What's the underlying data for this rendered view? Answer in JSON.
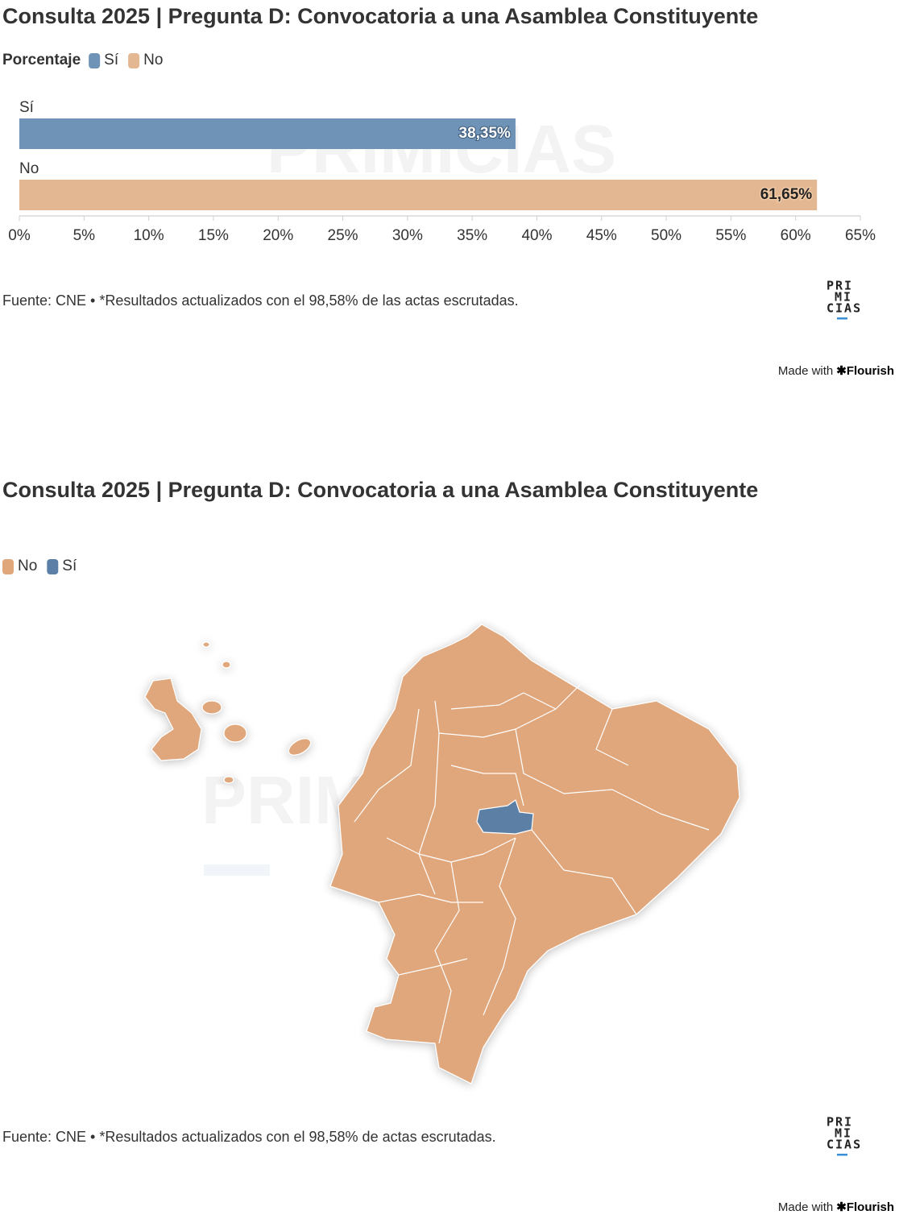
{
  "chart_data": [
    {
      "type": "bar",
      "title": "Consulta 2025 | Pregunta D: Convocatoria a una Asamblea Constituyente",
      "legend": {
        "title": "Porcentaje",
        "items": [
          {
            "name": "Sí",
            "color": "#6f93b6"
          },
          {
            "name": "No",
            "color": "#e4b793"
          }
        ]
      },
      "categories": [
        "Sí",
        "No"
      ],
      "values": [
        38.35,
        61.65
      ],
      "value_labels": [
        "38,35%",
        "61,65%"
      ],
      "xlim": [
        0,
        65
      ],
      "xticks": [
        {
          "value": 0,
          "label": "0%"
        },
        {
          "value": 5,
          "label": "5%"
        },
        {
          "value": 10,
          "label": "10%"
        },
        {
          "value": 15,
          "label": "15%"
        },
        {
          "value": 20,
          "label": "20%"
        },
        {
          "value": 25,
          "label": "25%"
        },
        {
          "value": 30,
          "label": "30%"
        },
        {
          "value": 35,
          "label": "35%"
        },
        {
          "value": 40,
          "label": "40%"
        },
        {
          "value": 45,
          "label": "45%"
        },
        {
          "value": 50,
          "label": "50%"
        },
        {
          "value": 55,
          "label": "55%"
        },
        {
          "value": 60,
          "label": "60%"
        },
        {
          "value": 65,
          "label": "65%"
        }
      ],
      "watermark": "PRIMICIAS",
      "source": "Fuente: CNE • *Resultados actualizados con el 98,58% de las actas escrutadas.",
      "logo": [
        "PRI",
        "MI",
        "CIAS"
      ],
      "credit": "Made with",
      "brand": "✱Flourish"
    },
    {
      "type": "map",
      "title": "Consulta 2025 | Pregunta D: Convocatoria a una Asamblea Constituyente",
      "legend": {
        "items": [
          {
            "name": "No",
            "color": "#e0a77b"
          },
          {
            "name": "Sí",
            "color": "#5b7fa6"
          }
        ]
      },
      "watermark": "PRIMICIAS",
      "source": "Fuente: CNE • *Resultados actualizados con el 98,58% de actas escrutadas.",
      "logo": [
        "PRI",
        "MI",
        "CIAS"
      ],
      "credit": "Made with",
      "brand": "✱Flourish"
    }
  ]
}
